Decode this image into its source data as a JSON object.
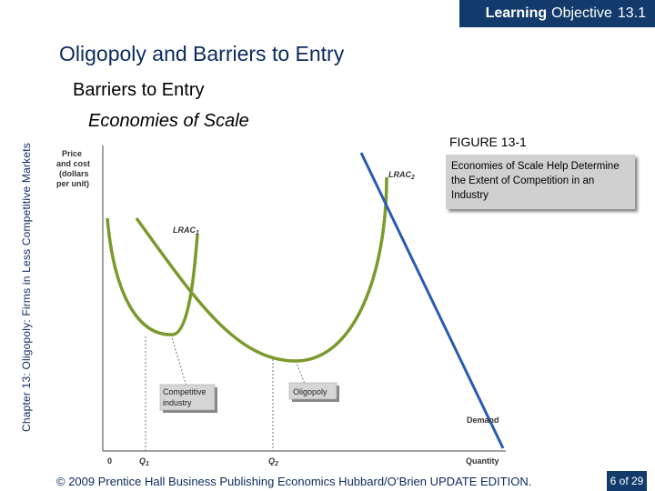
{
  "header": {
    "learning_objective_bold": "Learning",
    "learning_objective_rest": "Objective",
    "objective_number": "13.1"
  },
  "title": "Oligopoly and Barriers to Entry",
  "subtitle": "Barriers to Entry",
  "section": "Economies of Scale",
  "side_label": "Chapter 13: Oligopoly: Firms in Less Competitive Markets",
  "figure": {
    "label": "FIGURE 13-1",
    "caption": "Economies of Scale Help Determine the Extent of Competition in an Industry"
  },
  "graph": {
    "y_axis_label_lines": [
      "Price",
      "and cost",
      "(dollars",
      "per unit)"
    ],
    "x_axis_label": "Quantity",
    "origin_label": "0",
    "q1_label": "Q",
    "q1_sub": "1",
    "q2_label": "Q",
    "q2_sub": "2",
    "lrac1_label": "LRAC",
    "lrac1_sub": "1",
    "lrac2_label": "LRAC",
    "lrac2_sub": "2",
    "demand_label": "Demand",
    "competitive_box_lines": [
      "Competitive",
      "industry"
    ],
    "oligopoly_box": "Oligopoly",
    "colors": {
      "lrac": "#7a9a2e",
      "demand": "#2a5bb0",
      "axis": "#444444"
    }
  },
  "footer": "© 2009 Prentice Hall Business Publishing   Economics  Hubbard/O’Brien UPDATE EDITION.",
  "page": "6 of 29"
}
